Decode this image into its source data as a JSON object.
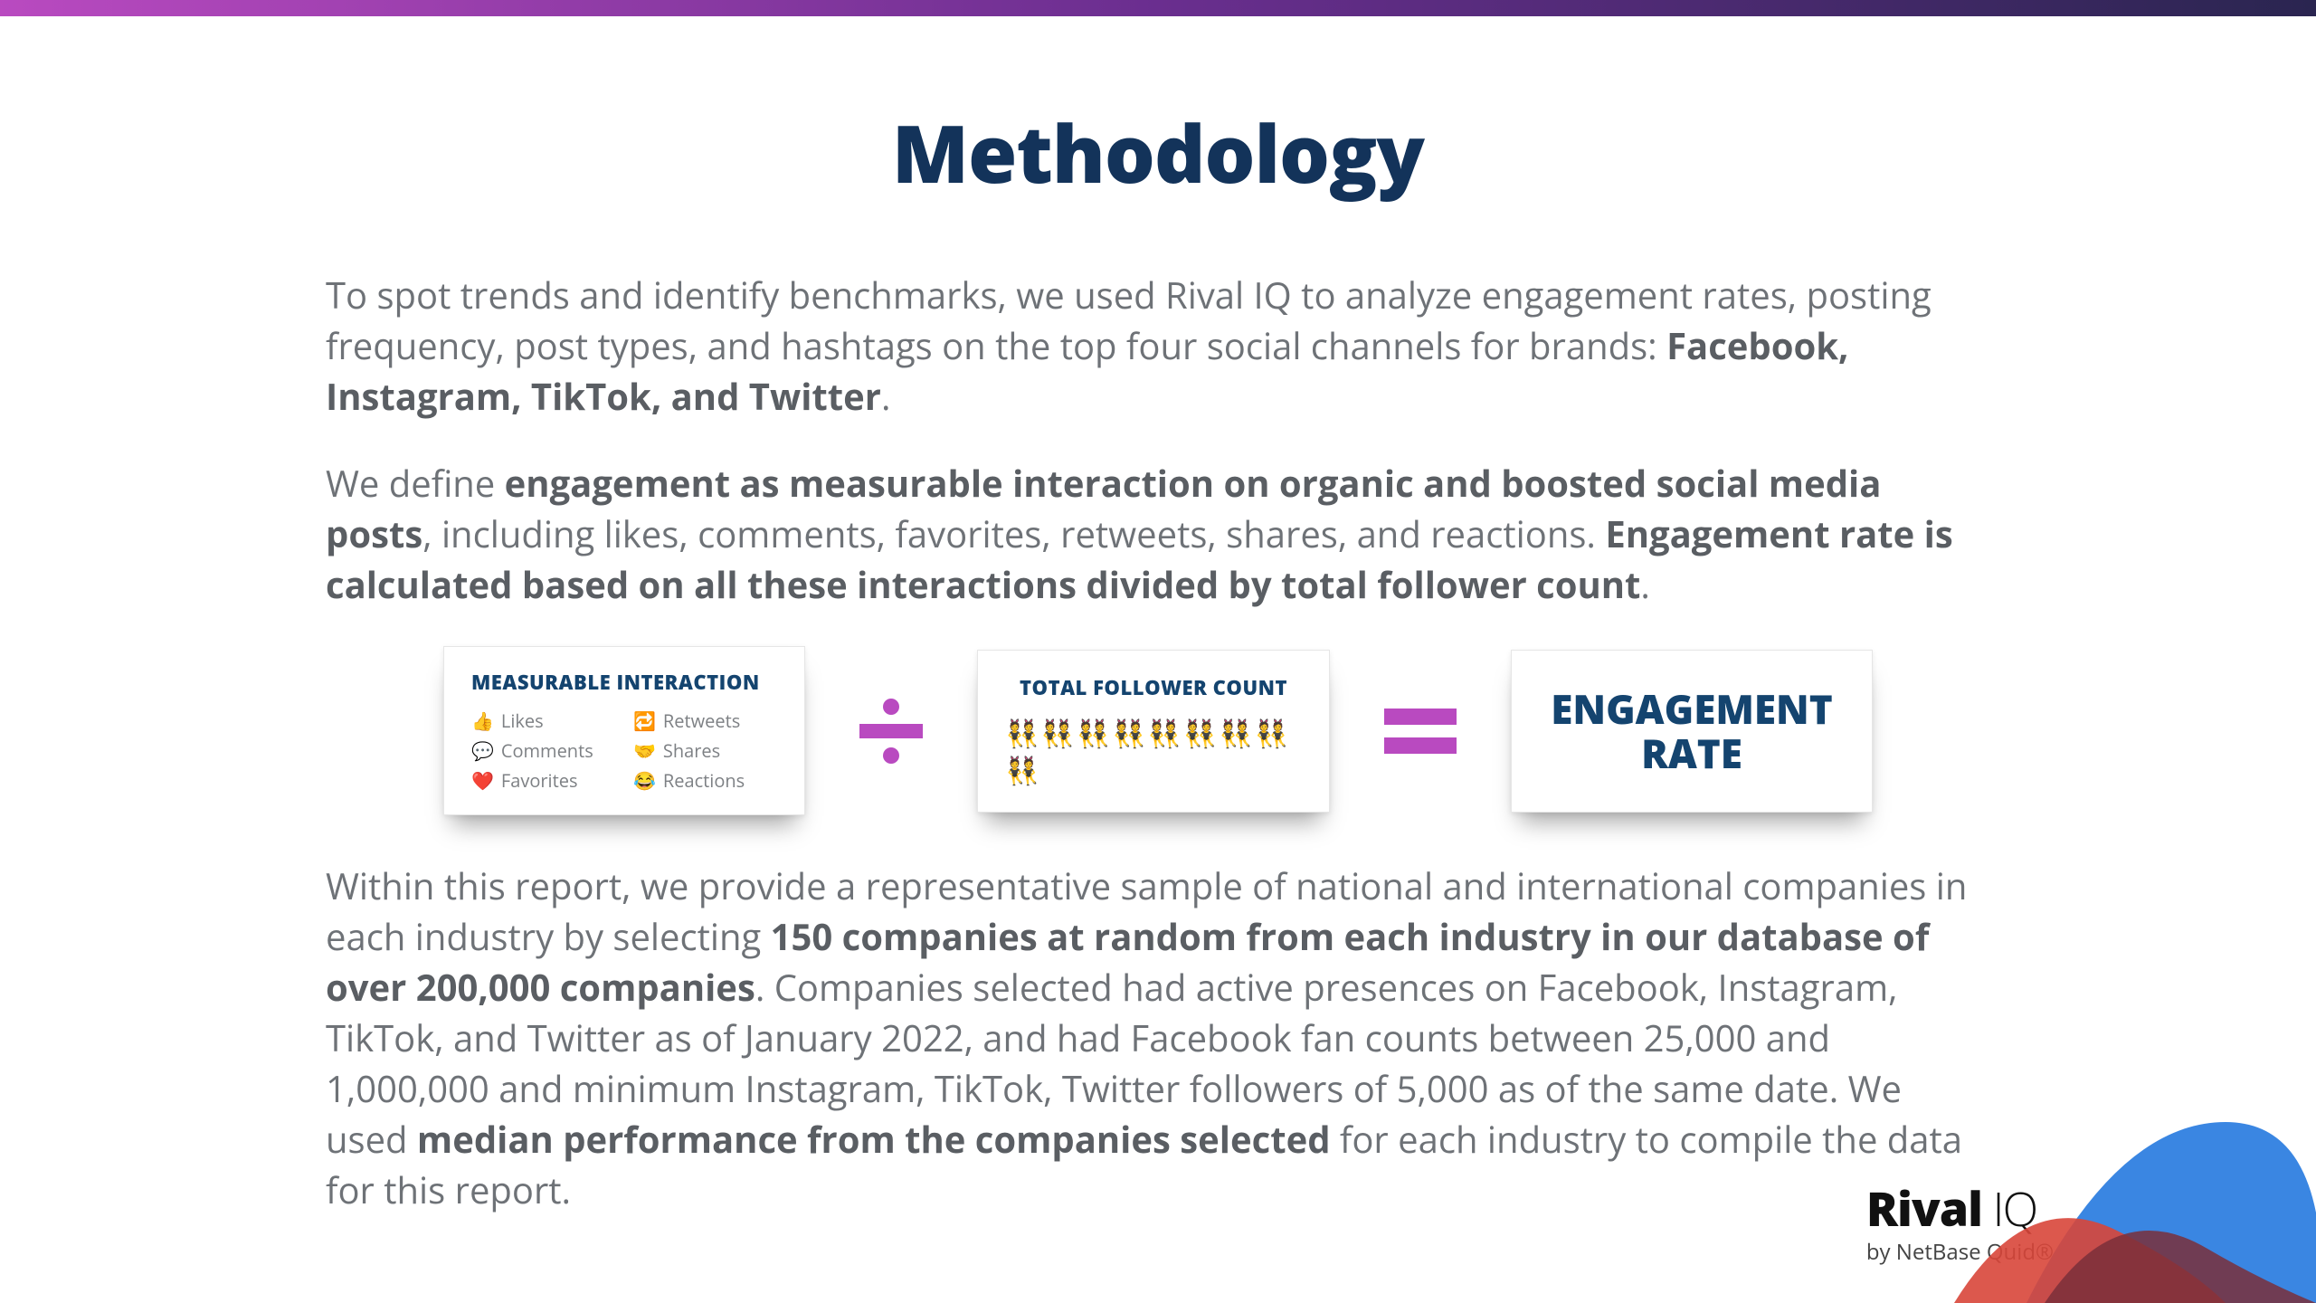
{
  "colors": {
    "top_gradient_start": "#b94ac0",
    "top_gradient_mid": "#6a2e8f",
    "top_gradient_end": "#2a2550",
    "title_color": "#13335a",
    "body_text": "#6e7277",
    "body_bold": "#5a5e63",
    "card_title": "#14446f",
    "operator": "#b94ac0",
    "wave_blue": "#2f7fe0",
    "wave_red": "#d8463a",
    "wave_dark": "#7a2f3a"
  },
  "title": "Methodology",
  "para1_pre": "To spot trends and identify benchmarks, we used Rival IQ to analyze engagement rates, posting frequency, post types, and hashtags on the top four social channels for brands: ",
  "para1_bold": "Facebook, Instagram, TikTok, and Twitter",
  "para1_post": ".",
  "para2_pre": "We define ",
  "para2_b1": "engagement as measurable interaction on organic and boosted social media posts",
  "para2_mid": ", including likes, comments, favorites, retweets, shares, and reactions. ",
  "para2_b2": "Engagement rate is calculated based on all these interactions divided by total follower count",
  "para2_post": ".",
  "formula": {
    "card1_title": "MEASURABLE INTERACTION",
    "interactions": [
      {
        "icon": "👍",
        "label": "Likes"
      },
      {
        "icon": "🔁",
        "label": "Retweets"
      },
      {
        "icon": "💬",
        "label": "Comments"
      },
      {
        "icon": "🤝",
        "label": "Shares"
      },
      {
        "icon": "❤️",
        "label": "Favorites"
      },
      {
        "icon": "😂",
        "label": "Reactions"
      }
    ],
    "card2_title": "TOTAL FOLLOWER COUNT",
    "follower_icon": "👯",
    "follower_count": 9,
    "result_line1": "ENGAGEMENT",
    "result_line2": "RATE"
  },
  "para3_pre": "Within this report, we provide a representative sample of national and international companies in each industry by selecting ",
  "para3_b1": "150 companies at random from each industry in our database of over 200,000 companies",
  "para3_mid": ". Companies selected had active presences on Facebook, Instagram, TikTok, and Twitter as of January 2022, and had Facebook fan counts between 25,000 and 1,000,000 and minimum Instagram, TikTok, Twitter followers of 5,000 as of the same date. We used ",
  "para3_b2": "median performance from the companies selected",
  "para3_post": " for each industry to compile the data for this report.",
  "logo": {
    "brand_bold": "Rival",
    "brand_light": " IQ",
    "byline": "by NetBase Quid®"
  }
}
